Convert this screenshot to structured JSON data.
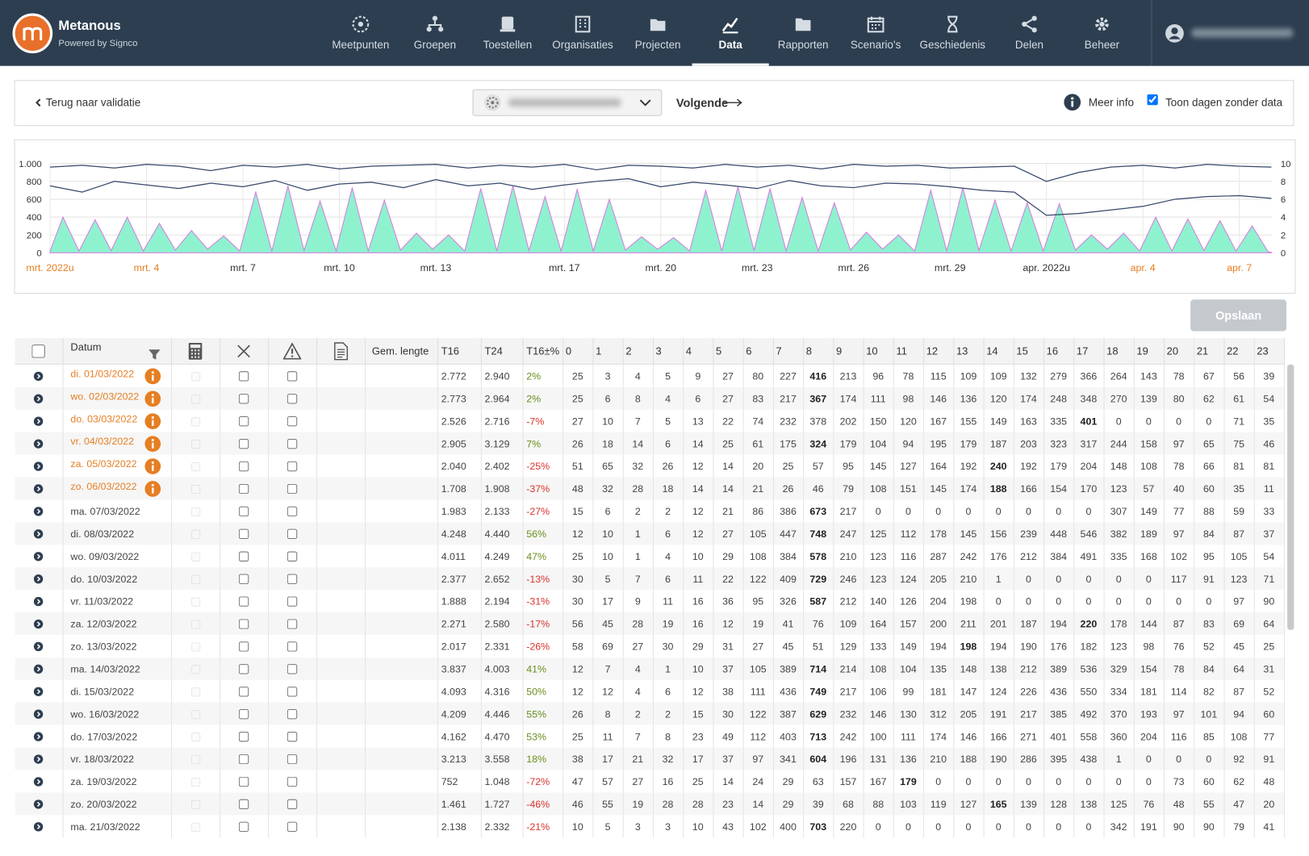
{
  "header": {
    "brand": "Metanous",
    "tagline": "Powered by Signco",
    "nav": [
      {
        "label": "Meetpunten"
      },
      {
        "label": "Groepen"
      },
      {
        "label": "Toestellen"
      },
      {
        "label": "Organisaties"
      },
      {
        "label": "Projecten"
      },
      {
        "label": "Data",
        "active": true
      },
      {
        "label": "Rapporten"
      },
      {
        "label": "Scenario's"
      },
      {
        "label": "Geschiedenis"
      },
      {
        "label": "Delen"
      },
      {
        "label": "Beheer"
      }
    ]
  },
  "toolbar": {
    "back": "Terug naar validatie",
    "next": "Volgende",
    "info": "Meer info",
    "show_empty": "Toon dagen zonder data",
    "show_empty_checked": true
  },
  "chart_data": {
    "type": "line",
    "xlim": [
      0,
      38
    ],
    "ylim": [
      0,
      1000
    ],
    "y2lim": [
      0,
      10
    ],
    "grid": true,
    "yticks": [
      0,
      200,
      400,
      600,
      800,
      {
        "value": 1000,
        "label": "1.000"
      }
    ],
    "y2ticks": [
      0,
      2,
      4,
      6,
      8,
      10
    ],
    "xticks": [
      {
        "value": 0,
        "label": "mrt. 2022u",
        "color": "#e67e22"
      },
      {
        "value": 3,
        "label": "mrt. 4",
        "color": "#e67e22"
      },
      {
        "value": 6,
        "label": "mrt. 7"
      },
      {
        "value": 9,
        "label": "mrt. 10"
      },
      {
        "value": 12,
        "label": "mrt. 13"
      },
      {
        "value": 16,
        "label": "mrt. 17"
      },
      {
        "value": 19,
        "label": "mrt. 20"
      },
      {
        "value": 22,
        "label": "mrt. 23"
      },
      {
        "value": 25,
        "label": "mrt. 26"
      },
      {
        "value": 28,
        "label": "mrt. 29"
      },
      {
        "value": 31,
        "label": "apr. 2022u"
      },
      {
        "value": 34,
        "label": "apr. 4",
        "color": "#e67e22"
      },
      {
        "value": 37,
        "label": "apr. 7",
        "color": "#e67e22"
      }
    ],
    "series": [
      {
        "color": "#8ef2cf",
        "area": true,
        "x": [
          0,
          0.4,
          0.9,
          1.4,
          1.9,
          2.4,
          2.9,
          3.4,
          3.9,
          4.4,
          4.9,
          5.4,
          5.9,
          6.4,
          6.9,
          7.4,
          7.9,
          8.4,
          8.9,
          9.4,
          9.9,
          10.4,
          10.9,
          11.4,
          11.9,
          12.4,
          12.9,
          13.4,
          13.9,
          14.4,
          14.9,
          15.4,
          15.9,
          16.4,
          16.9,
          17.4,
          17.9,
          18.4,
          18.9,
          19.4,
          19.9,
          20.4,
          20.9,
          21.4,
          21.9,
          22.4,
          22.9,
          23.4,
          23.9,
          24.4,
          24.9,
          25.4,
          25.9,
          26.4,
          26.9,
          27.4,
          27.9,
          28.4,
          28.9,
          29.4,
          29.9,
          30.4,
          30.9,
          31.4,
          31.9,
          32.4,
          32.9,
          33.4,
          33.9,
          34.4,
          34.9,
          35.4,
          35.9,
          36.4,
          36.9,
          37.4,
          37.9,
          38
        ],
        "values": [
          20,
          400,
          20,
          370,
          25,
          400,
          20,
          330,
          30,
          250,
          40,
          190,
          20,
          680,
          20,
          750,
          25,
          580,
          20,
          730,
          20,
          590,
          30,
          220,
          40,
          200,
          20,
          720,
          20,
          750,
          25,
          630,
          20,
          710,
          20,
          600,
          30,
          180,
          40,
          170,
          20,
          700,
          20,
          740,
          25,
          720,
          20,
          620,
          20,
          560,
          30,
          230,
          40,
          200,
          20,
          700,
          20,
          730,
          25,
          590,
          20,
          560,
          20,
          550,
          30,
          200,
          40,
          220,
          20,
          400,
          20,
          380,
          25,
          360,
          20,
          300,
          10,
          5
        ]
      },
      {
        "color": "#34476a",
        "axis": "y2",
        "x": [
          0,
          1,
          2,
          3,
          4,
          5,
          6,
          7,
          8,
          9,
          10,
          11,
          12,
          13,
          14,
          15,
          16,
          17,
          18,
          19,
          20,
          21,
          22,
          23,
          24,
          25,
          26,
          27,
          28,
          29,
          30,
          31,
          32,
          33,
          34,
          35,
          36,
          37,
          38
        ],
        "values": [
          9.6,
          9.8,
          9.5,
          9.9,
          9.7,
          9.2,
          9.8,
          9.6,
          9.9,
          9.4,
          9.7,
          9.8,
          9.9,
          9.5,
          9.8,
          9.6,
          9.9,
          9.3,
          9.8,
          9.7,
          9.5,
          9.9,
          9.6,
          9.8,
          9.4,
          9.9,
          9.7,
          9.8,
          9.5,
          9.6,
          9.7,
          8.0,
          9.0,
          9.6,
          9.8,
          9.5,
          9.9,
          9.7,
          9.6
        ]
      },
      {
        "color": "#34476a",
        "axis": "y2",
        "x": [
          0,
          1,
          2,
          3,
          4,
          5,
          6,
          7,
          8,
          9,
          10,
          11,
          12,
          13,
          14,
          15,
          16,
          17,
          18,
          19,
          20,
          21,
          22,
          23,
          24,
          25,
          26,
          27,
          28,
          29,
          30,
          31,
          32,
          33,
          34,
          35,
          36,
          37,
          38
        ],
        "values": [
          7.5,
          6.8,
          8.0,
          7.6,
          7.2,
          7.8,
          7.4,
          8.1,
          7.0,
          7.7,
          7.9,
          7.3,
          8.2,
          7.5,
          7.8,
          7.1,
          7.6,
          8.0,
          8.3,
          7.4,
          7.9,
          7.6,
          7.2,
          8.1,
          7.5,
          7.3,
          7.8,
          7.7,
          7.4,
          7.0,
          6.8,
          4.2,
          4.4,
          4.8,
          5.2,
          6.0,
          6.3,
          6.4,
          6.1
        ]
      }
    ]
  },
  "save": "Opslaan",
  "table": {
    "headers": {
      "date": "Datum",
      "length": "Gem. lengte",
      "t16": "T16",
      "t24": "T24",
      "pct": "T16±%",
      "hours": [
        "0",
        "1",
        "2",
        "3",
        "4",
        "5",
        "6",
        "7",
        "8",
        "9",
        "10",
        "11",
        "12",
        "13",
        "14",
        "15",
        "16",
        "17",
        "18",
        "19",
        "20",
        "21",
        "22",
        "23"
      ]
    },
    "rows": [
      {
        "date": "di. 01/03/2022",
        "flag": true,
        "t16": "2.772",
        "t24": "2.940",
        "pct": "2%",
        "hours": [
          25,
          3,
          4,
          5,
          9,
          27,
          80,
          227,
          416,
          213,
          96,
          78,
          115,
          109,
          109,
          132,
          279,
          366,
          264,
          143,
          78,
          67,
          56,
          39
        ]
      },
      {
        "date": "wo. 02/03/2022",
        "flag": true,
        "t16": "2.773",
        "t24": "2.964",
        "pct": "2%",
        "hours": [
          25,
          6,
          8,
          4,
          6,
          27,
          83,
          217,
          367,
          174,
          111,
          98,
          146,
          136,
          120,
          174,
          248,
          348,
          270,
          139,
          80,
          62,
          61,
          54
        ]
      },
      {
        "date": "do. 03/03/2022",
        "flag": true,
        "t16": "2.526",
        "t24": "2.716",
        "pct": "-7%",
        "hours": [
          27,
          10,
          7,
          5,
          13,
          22,
          74,
          232,
          378,
          202,
          150,
          120,
          167,
          155,
          149,
          163,
          335,
          401,
          0,
          0,
          0,
          0,
          71,
          35
        ]
      },
      {
        "date": "vr. 04/03/2022",
        "flag": true,
        "t16": "2.905",
        "t24": "3.129",
        "pct": "7%",
        "hours": [
          26,
          18,
          14,
          6,
          14,
          25,
          61,
          175,
          324,
          179,
          104,
          94,
          195,
          179,
          187,
          203,
          323,
          317,
          244,
          158,
          97,
          65,
          75,
          46
        ]
      },
      {
        "date": "za. 05/03/2022",
        "flag": true,
        "t16": "2.040",
        "t24": "2.402",
        "pct": "-25%",
        "hours": [
          51,
          65,
          32,
          26,
          12,
          14,
          20,
          25,
          57,
          95,
          145,
          127,
          164,
          192,
          240,
          192,
          179,
          204,
          148,
          108,
          78,
          66,
          81,
          81
        ]
      },
      {
        "date": "zo. 06/03/2022",
        "flag": true,
        "t16": "1.708",
        "t24": "1.908",
        "pct": "-37%",
        "hours": [
          48,
          32,
          28,
          18,
          14,
          14,
          21,
          26,
          46,
          79,
          108,
          151,
          145,
          174,
          188,
          166,
          154,
          170,
          123,
          57,
          40,
          60,
          35,
          11
        ]
      },
      {
        "date": "ma. 07/03/2022",
        "t16": "1.983",
        "t24": "2.133",
        "pct": "-27%",
        "hours": [
          15,
          6,
          2,
          2,
          12,
          21,
          86,
          386,
          673,
          217,
          0,
          0,
          0,
          0,
          0,
          0,
          0,
          0,
          307,
          149,
          77,
          88,
          59,
          33
        ]
      },
      {
        "date": "di. 08/03/2022",
        "t16": "4.248",
        "t24": "4.440",
        "pct": "56%",
        "hours": [
          12,
          10,
          1,
          6,
          12,
          27,
          105,
          447,
          748,
          247,
          125,
          112,
          178,
          145,
          156,
          239,
          448,
          546,
          382,
          189,
          97,
          84,
          87,
          37
        ]
      },
      {
        "date": "wo. 09/03/2022",
        "t16": "4.011",
        "t24": "4.249",
        "pct": "47%",
        "hours": [
          25,
          10,
          1,
          4,
          10,
          29,
          108,
          384,
          578,
          210,
          123,
          116,
          287,
          242,
          176,
          212,
          384,
          491,
          335,
          168,
          102,
          95,
          105,
          54
        ]
      },
      {
        "date": "do. 10/03/2022",
        "t16": "2.377",
        "t24": "2.652",
        "pct": "-13%",
        "hours": [
          30,
          5,
          7,
          6,
          11,
          22,
          122,
          409,
          729,
          246,
          123,
          124,
          205,
          210,
          1,
          0,
          0,
          0,
          0,
          0,
          117,
          91,
          123,
          71
        ]
      },
      {
        "date": "vr. 11/03/2022",
        "t16": "1.888",
        "t24": "2.194",
        "pct": "-31%",
        "hours": [
          30,
          17,
          9,
          11,
          16,
          36,
          95,
          326,
          587,
          212,
          140,
          126,
          204,
          198,
          0,
          0,
          0,
          0,
          0,
          0,
          0,
          0,
          97,
          90
        ]
      },
      {
        "date": "za. 12/03/2022",
        "t16": "2.271",
        "t24": "2.580",
        "pct": "-17%",
        "hours": [
          56,
          45,
          28,
          19,
          16,
          12,
          19,
          41,
          76,
          109,
          164,
          157,
          200,
          211,
          201,
          187,
          194,
          220,
          178,
          144,
          87,
          83,
          69,
          64
        ]
      },
      {
        "date": "zo. 13/03/2022",
        "t16": "2.017",
        "t24": "2.331",
        "pct": "-26%",
        "hours": [
          58,
          69,
          27,
          30,
          29,
          31,
          27,
          45,
          51,
          129,
          133,
          149,
          194,
          198,
          194,
          190,
          176,
          182,
          123,
          98,
          76,
          52,
          45,
          25
        ]
      },
      {
        "date": "ma. 14/03/2022",
        "t16": "3.837",
        "t24": "4.003",
        "pct": "41%",
        "hours": [
          12,
          7,
          4,
          1,
          10,
          37,
          105,
          389,
          714,
          214,
          108,
          104,
          135,
          148,
          138,
          212,
          389,
          536,
          329,
          154,
          78,
          84,
          64,
          31
        ]
      },
      {
        "date": "di. 15/03/2022",
        "t16": "4.093",
        "t24": "4.316",
        "pct": "50%",
        "hours": [
          12,
          12,
          4,
          6,
          12,
          38,
          111,
          436,
          749,
          217,
          106,
          99,
          181,
          147,
          124,
          226,
          436,
          550,
          334,
          181,
          114,
          82,
          87,
          52
        ]
      },
      {
        "date": "wo. 16/03/2022",
        "t16": "4.209",
        "t24": "4.446",
        "pct": "55%",
        "hours": [
          26,
          8,
          2,
          2,
          15,
          30,
          122,
          387,
          629,
          232,
          146,
          130,
          312,
          205,
          191,
          217,
          385,
          492,
          370,
          193,
          97,
          101,
          94,
          60
        ]
      },
      {
        "date": "do. 17/03/2022",
        "t16": "4.162",
        "t24": "4.470",
        "pct": "53%",
        "hours": [
          25,
          11,
          7,
          8,
          23,
          49,
          112,
          403,
          713,
          242,
          100,
          111,
          174,
          146,
          166,
          271,
          401,
          558,
          360,
          204,
          116,
          85,
          108,
          77
        ]
      },
      {
        "date": "vr. 18/03/2022",
        "t16": "3.213",
        "t24": "3.558",
        "pct": "18%",
        "hours": [
          38,
          17,
          21,
          32,
          17,
          37,
          97,
          341,
          604,
          196,
          131,
          136,
          210,
          188,
          190,
          286,
          395,
          438,
          1,
          0,
          0,
          0,
          92,
          91
        ]
      },
      {
        "date": "za. 19/03/2022",
        "t16": "752",
        "t24": "1.048",
        "pct": "-72%",
        "hours": [
          47,
          57,
          27,
          16,
          25,
          14,
          24,
          29,
          63,
          157,
          167,
          179,
          0,
          0,
          0,
          0,
          0,
          0,
          0,
          0,
          73,
          60,
          62,
          48
        ]
      },
      {
        "date": "zo. 20/03/2022",
        "t16": "1.461",
        "t24": "1.727",
        "pct": "-46%",
        "hours": [
          46,
          55,
          19,
          28,
          28,
          23,
          14,
          29,
          39,
          68,
          88,
          103,
          119,
          127,
          165,
          139,
          128,
          138,
          125,
          76,
          48,
          55,
          47,
          20
        ]
      },
      {
        "date": "ma. 21/03/2022",
        "t16": "2.138",
        "t24": "2.332",
        "pct": "-21%",
        "hours": [
          10,
          5,
          3,
          3,
          10,
          43,
          102,
          400,
          703,
          220,
          0,
          0,
          0,
          0,
          0,
          0,
          0,
          0,
          342,
          191,
          90,
          90,
          79,
          41
        ]
      }
    ]
  }
}
